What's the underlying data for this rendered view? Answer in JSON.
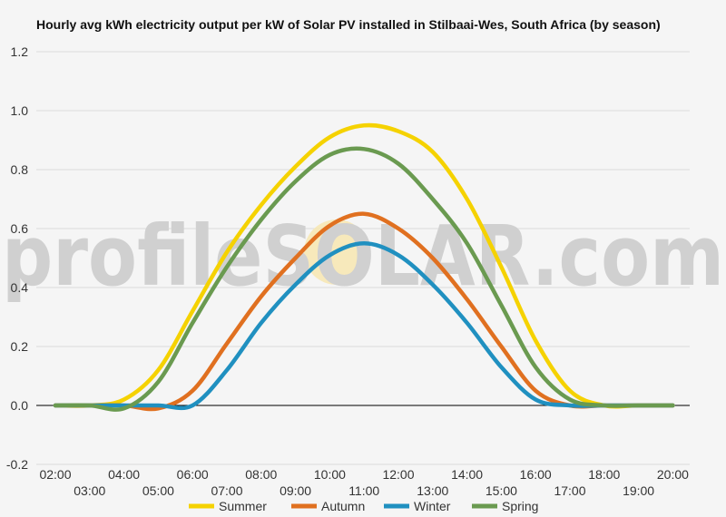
{
  "chart_data": {
    "type": "line",
    "title": "Hourly avg kWh electricity output per kW of Solar PV installed in Stilbaai-Wes, South Africa (by season)",
    "xlabel": "",
    "ylabel": "",
    "ylim": [
      -0.2,
      1.2
    ],
    "y_ticks": [
      "1.2",
      "1.0",
      "0.8",
      "0.6",
      "0.4",
      "0.2",
      "0.0",
      "-0.2"
    ],
    "y_tick_values": [
      1.2,
      1.0,
      0.8,
      0.6,
      0.4,
      0.2,
      0.0,
      -0.2
    ],
    "x_ticks_upper": [
      "02:00",
      "04:00",
      "06:00",
      "08:00",
      "10:00",
      "12:00",
      "14:00",
      "16:00",
      "18:00",
      "20:00"
    ],
    "x_ticks_lower": [
      "03:00",
      "05:00",
      "07:00",
      "09:00",
      "11:00",
      "13:00",
      "15:00",
      "17:00",
      "19:00"
    ],
    "x_hours": [
      2,
      3,
      4,
      5,
      6,
      7,
      8,
      9,
      10,
      11,
      12,
      13,
      14,
      15,
      16,
      17,
      18,
      19,
      20
    ],
    "grid": true,
    "legend_position": "bottom",
    "series": [
      {
        "name": "Summer",
        "color": "#f5d200",
        "values": [
          0.0,
          0.0,
          0.02,
          0.12,
          0.32,
          0.52,
          0.68,
          0.81,
          0.91,
          0.95,
          0.93,
          0.86,
          0.7,
          0.47,
          0.22,
          0.05,
          0.0,
          0.0,
          0.0
        ]
      },
      {
        "name": "Autumn",
        "color": "#e07020",
        "values": [
          0.0,
          0.0,
          0.0,
          -0.01,
          0.05,
          0.21,
          0.37,
          0.5,
          0.61,
          0.65,
          0.6,
          0.5,
          0.36,
          0.2,
          0.05,
          0.0,
          0.0,
          0.0,
          0.0
        ]
      },
      {
        "name": "Winter",
        "color": "#2090c0",
        "values": [
          0.0,
          0.0,
          0.0,
          0.0,
          0.0,
          0.12,
          0.28,
          0.41,
          0.51,
          0.55,
          0.51,
          0.41,
          0.28,
          0.13,
          0.02,
          0.0,
          0.0,
          0.0,
          0.0
        ]
      },
      {
        "name": "Spring",
        "color": "#6a9a50",
        "values": [
          0.0,
          0.0,
          -0.01,
          0.08,
          0.28,
          0.47,
          0.63,
          0.76,
          0.85,
          0.87,
          0.82,
          0.7,
          0.55,
          0.34,
          0.13,
          0.02,
          0.0,
          0.0,
          0.0
        ]
      }
    ]
  },
  "watermark": "profileSOLAR.com"
}
